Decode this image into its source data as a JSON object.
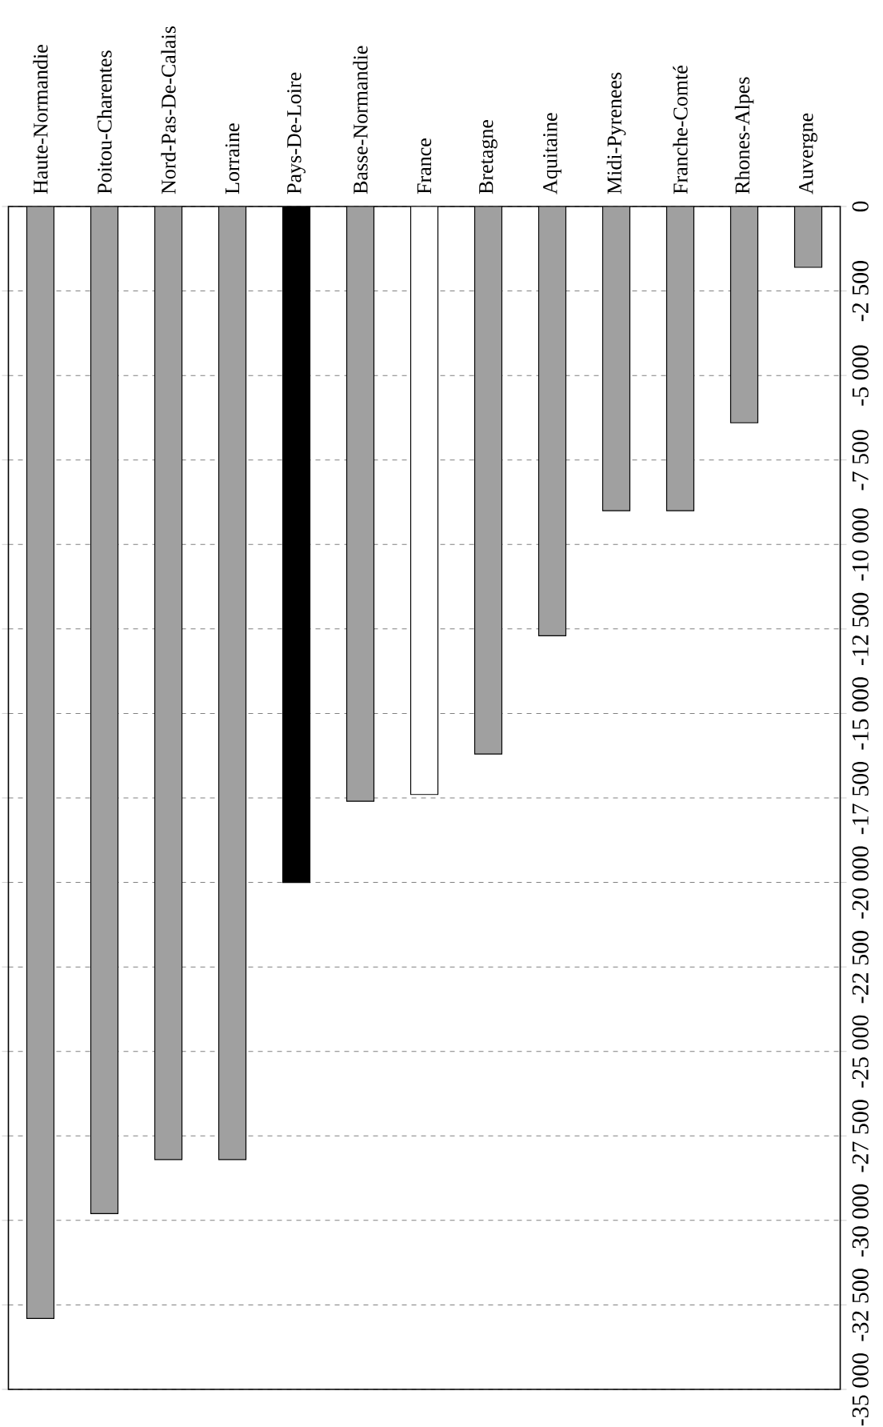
{
  "chart_data": {
    "type": "bar",
    "categories": [
      "Haute-Normandie",
      "Poitou-Charentes",
      "Nord-Pas-De-Calais",
      "Lorraine",
      "Pays-De-Loire",
      "Basse-Normandie",
      "France",
      "Bretagne",
      "Aquitaine",
      "Midi-Pyrenees",
      "Franche-Comté",
      "Rhones-Alpes",
      "Auvergne"
    ],
    "values": [
      -32900,
      -29800,
      -28200,
      -28200,
      -20000,
      -17600,
      -17400,
      -16200,
      -12700,
      -9000,
      -9000,
      -6400,
      -1800
    ],
    "colors": [
      "#a0a0a0",
      "#a0a0a0",
      "#a0a0a0",
      "#a0a0a0",
      "#000000",
      "#a0a0a0",
      "#ffffff",
      "#a0a0a0",
      "#a0a0a0",
      "#a0a0a0",
      "#a0a0a0",
      "#a0a0a0",
      "#a0a0a0"
    ],
    "ylim": [
      -35000,
      0
    ],
    "yticks": [
      {
        "value": -35000,
        "label": "-35 000"
      },
      {
        "value": -32500,
        "label": "-32 500"
      },
      {
        "value": -30000,
        "label": "-30 000"
      },
      {
        "value": -27500,
        "label": "-27 500"
      },
      {
        "value": -25000,
        "label": "-25 000"
      },
      {
        "value": -22500,
        "label": "-22 500"
      },
      {
        "value": -20000,
        "label": "-20 000"
      },
      {
        "value": -17500,
        "label": "-17 500"
      },
      {
        "value": -15000,
        "label": "-15 000"
      },
      {
        "value": -12500,
        "label": "-12 500"
      },
      {
        "value": -10000,
        "label": "-10 000"
      },
      {
        "value": -7500,
        "label": "-7 500"
      },
      {
        "value": -5000,
        "label": "-5 000"
      },
      {
        "value": -2500,
        "label": "-2 500"
      },
      {
        "value": 0,
        "label": "0"
      }
    ],
    "grid": "y"
  }
}
